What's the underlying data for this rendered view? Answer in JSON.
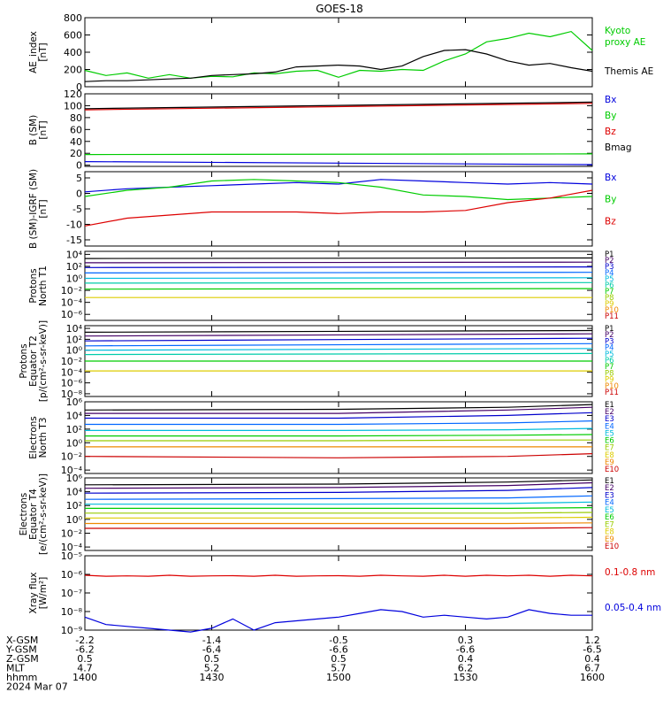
{
  "title": "GOES-18",
  "colors": {
    "black": "#000000",
    "green": "#00cc00",
    "blue": "#0000dd",
    "red": "#dd0000",
    "P1": "#000000",
    "P2": "#440066",
    "P3": "#0000cc",
    "P4": "#0066ff",
    "P5": "#00bbdd",
    "P6": "#00ccaa",
    "P7": "#00cc00",
    "P8": "#99cc00",
    "P9": "#ddcc00",
    "P10": "#ee8800",
    "P11": "#cc0000"
  },
  "footer": {
    "row_labels": [
      "X-GSM",
      "Y-GSM",
      "Z-GSM",
      "MLT",
      "hhmm",
      "2024 Mar 07"
    ],
    "columns": [
      [
        "-2.2",
        "-6.2",
        "0.5",
        "4.7",
        "1400"
      ],
      [
        "-1.4",
        "-6.4",
        "0.5",
        "5.2",
        "1430"
      ],
      [
        "-0.5",
        "-6.6",
        "0.5",
        "5.7",
        "1500"
      ],
      [
        "0.3",
        "-6.6",
        "0.4",
        "6.2",
        "1530"
      ],
      [
        "1.2",
        "-6.5",
        "0.4",
        "6.7",
        "1600"
      ]
    ]
  },
  "chart_data": [
    {
      "type": "line",
      "ylabel": [
        "AE_index",
        "[nT]"
      ],
      "yticks": [
        "800",
        "600",
        "400",
        "200",
        "0"
      ],
      "ylim": [
        0,
        800
      ],
      "legend": [
        {
          "text": "Kyoto",
          "color": "#00cc00"
        },
        {
          "text": "proxy AE",
          "color": "#00cc00"
        },
        {
          "text": "Themis AE",
          "color": "#000000"
        }
      ],
      "x": [
        1400,
        1405,
        1410,
        1415,
        1420,
        1425,
        1430,
        1435,
        1440,
        1445,
        1450,
        1455,
        1500,
        1505,
        1510,
        1515,
        1520,
        1525,
        1530,
        1535,
        1540,
        1545,
        1550,
        1555,
        1600
      ],
      "series": [
        {
          "name": "Kyoto proxy AE",
          "color": "#00cc00",
          "values": [
            190,
            130,
            160,
            100,
            140,
            100,
            120,
            115,
            160,
            150,
            180,
            190,
            110,
            190,
            180,
            200,
            190,
            300,
            380,
            520,
            560,
            620,
            580,
            640,
            420
          ]
        },
        {
          "name": "Themis AE",
          "color": "#000000",
          "values": [
            60,
            70,
            70,
            80,
            90,
            100,
            130,
            140,
            150,
            170,
            230,
            240,
            250,
            240,
            200,
            240,
            350,
            420,
            430,
            380,
            300,
            250,
            270,
            220,
            180
          ]
        }
      ]
    },
    {
      "type": "line",
      "ylabel": [
        "B (SM)",
        "[nT]"
      ],
      "yticks": [
        "120",
        "100",
        "80",
        "60",
        "40",
        "20",
        "0"
      ],
      "ylim": [
        -2,
        120
      ],
      "legend": [
        {
          "text": "Bx",
          "color": "#0000dd"
        },
        {
          "text": "By",
          "color": "#00cc00"
        },
        {
          "text": "Bz",
          "color": "#dd0000"
        },
        {
          "text": "Bmag",
          "color": "#000000"
        }
      ],
      "x": [
        1400,
        1600
      ],
      "series": [
        {
          "name": "Bx",
          "color": "#0000dd",
          "values": [
            6,
            1
          ]
        },
        {
          "name": "By",
          "color": "#00cc00",
          "values": [
            18,
            19
          ]
        },
        {
          "name": "Bz",
          "color": "#dd0000",
          "values": [
            93,
            104
          ]
        },
        {
          "name": "Bmag",
          "color": "#000000",
          "values": [
            95,
            106
          ]
        }
      ]
    },
    {
      "type": "line",
      "ylabel": [
        "B (SM)-IGRF (SM)",
        "[nT]"
      ],
      "yticks": [
        "5",
        "0",
        "-5",
        "-10",
        "-15"
      ],
      "ylim": [
        -17,
        7
      ],
      "legend": [
        {
          "text": "Bx",
          "color": "#0000dd"
        },
        {
          "text": "By",
          "color": "#00cc00"
        },
        {
          "text": "Bz",
          "color": "#dd0000"
        }
      ],
      "x": [
        1400,
        1410,
        1420,
        1430,
        1440,
        1450,
        1500,
        1510,
        1520,
        1530,
        1540,
        1550,
        1600
      ],
      "series": [
        {
          "name": "Bx",
          "color": "#0000dd",
          "values": [
            0.5,
            1.5,
            2,
            2.5,
            3,
            3.5,
            3,
            4.5,
            4,
            3.5,
            3,
            3.5,
            3
          ]
        },
        {
          "name": "By",
          "color": "#00cc00",
          "values": [
            -1,
            1,
            2,
            4,
            4.5,
            4,
            3.5,
            2,
            -0.5,
            -1,
            -2,
            -1.5,
            -1
          ]
        },
        {
          "name": "Bz",
          "color": "#dd0000",
          "values": [
            -10.5,
            -8,
            -7,
            -6,
            -6,
            -6,
            -6.5,
            -6,
            -6,
            -5.5,
            -3,
            -1.5,
            1
          ]
        }
      ]
    },
    {
      "type": "line",
      "ylabel": [
        "Protons",
        "North T1"
      ],
      "yticks": [
        "10⁴",
        "10²",
        "10⁰",
        "10⁻²",
        "10⁻⁴",
        "10⁻⁶"
      ],
      "log": true,
      "ylim": [
        -7,
        4.5
      ],
      "legend": [
        {
          "text": "P1",
          "color": "#000000"
        },
        {
          "text": "P2",
          "color": "#440066"
        },
        {
          "text": "P3",
          "color": "#0000cc"
        },
        {
          "text": "P4",
          "color": "#0066ff"
        },
        {
          "text": "P5",
          "color": "#00bbdd"
        },
        {
          "text": "P6",
          "color": "#00ccaa"
        },
        {
          "text": "P7",
          "color": "#00cc00"
        },
        {
          "text": "P8",
          "color": "#99cc00"
        },
        {
          "text": "P9",
          "color": "#ddcc00"
        },
        {
          "text": "P10",
          "color": "#ee8800"
        },
        {
          "text": "P11",
          "color": "#cc0000"
        }
      ],
      "x": [
        1400,
        1600
      ],
      "series": [
        {
          "name": "P1",
          "color": "#000000",
          "values": [
            3.3,
            3.4
          ]
        },
        {
          "name": "P2",
          "color": "#440066",
          "values": [
            2.6,
            2.7
          ]
        },
        {
          "name": "P3",
          "color": "#0000cc",
          "values": [
            1.8,
            1.9
          ]
        },
        {
          "name": "P4",
          "color": "#0066ff",
          "values": [
            0.9,
            1.0
          ]
        },
        {
          "name": "P5",
          "color": "#00bbdd",
          "values": [
            0,
            0.1
          ]
        },
        {
          "name": "P6",
          "color": "#00ccaa",
          "values": [
            -0.8,
            -0.7
          ]
        },
        {
          "name": "P7",
          "color": "#00cc00",
          "values": [
            -1.8,
            -1.7
          ]
        },
        {
          "name": "P9",
          "color": "#ddcc00",
          "values": [
            -3.2,
            -3.2
          ]
        }
      ]
    },
    {
      "type": "line",
      "ylabel": [
        "Protons",
        "Equator T2",
        "[p/(cm²-s-sr-keV)]"
      ],
      "yticks": [
        "10⁴",
        "10²",
        "10⁰",
        "10⁻²",
        "10⁻⁴",
        "10⁻⁶",
        "10⁻⁸"
      ],
      "log": true,
      "ylim": [
        -8.5,
        4.5
      ],
      "legend": [
        {
          "text": "P1",
          "color": "#000000"
        },
        {
          "text": "P2",
          "color": "#440066"
        },
        {
          "text": "P3",
          "color": "#0000cc"
        },
        {
          "text": "P4",
          "color": "#0066ff"
        },
        {
          "text": "P5",
          "color": "#00bbdd"
        },
        {
          "text": "P6",
          "color": "#00ccaa"
        },
        {
          "text": "P7",
          "color": "#00cc00"
        },
        {
          "text": "P8",
          "color": "#99cc00"
        },
        {
          "text": "P9",
          "color": "#ddcc00"
        },
        {
          "text": "P10",
          "color": "#ee8800"
        },
        {
          "text": "P11",
          "color": "#cc0000"
        }
      ],
      "x": [
        1400,
        1600
      ],
      "series": [
        {
          "name": "P1",
          "color": "#000000",
          "values": [
            3.3,
            3.6
          ]
        },
        {
          "name": "P2",
          "color": "#440066",
          "values": [
            2.6,
            3.0
          ]
        },
        {
          "name": "P3",
          "color": "#0000cc",
          "values": [
            1.7,
            2.2
          ]
        },
        {
          "name": "P4",
          "color": "#0066ff",
          "values": [
            0.8,
            1.2
          ]
        },
        {
          "name": "P5",
          "color": "#00bbdd",
          "values": [
            0,
            0.3
          ]
        },
        {
          "name": "P6",
          "color": "#00ccaa",
          "values": [
            -0.8,
            -0.6
          ]
        },
        {
          "name": "P7",
          "color": "#00cc00",
          "values": [
            -2.0,
            -2.0
          ]
        },
        {
          "name": "P9",
          "color": "#ddcc00",
          "values": [
            -3.8,
            -3.8
          ]
        }
      ]
    },
    {
      "type": "line",
      "ylabel": [
        "Electrons",
        "North T3"
      ],
      "yticks": [
        "10⁶",
        "10⁴",
        "10²",
        "10⁰",
        "10⁻²",
        "10⁻⁴"
      ],
      "log": true,
      "ylim": [
        -4.5,
        6
      ],
      "legend": [
        {
          "text": "E1",
          "color": "#000000"
        },
        {
          "text": "E2",
          "color": "#440066"
        },
        {
          "text": "E3",
          "color": "#0000cc"
        },
        {
          "text": "E4",
          "color": "#0066ff"
        },
        {
          "text": "E5",
          "color": "#00bbdd"
        },
        {
          "text": "E6",
          "color": "#00cc00"
        },
        {
          "text": "E7",
          "color": "#99cc00"
        },
        {
          "text": "E8",
          "color": "#ddcc00"
        },
        {
          "text": "E9",
          "color": "#ee8800"
        },
        {
          "text": "E10",
          "color": "#cc0000"
        }
      ],
      "x": [
        1400,
        1500,
        1540,
        1600
      ],
      "series": [
        {
          "name": "E1",
          "color": "#000000",
          "values": [
            4.8,
            4.9,
            5.2,
            5.6
          ]
        },
        {
          "name": "E2",
          "color": "#440066",
          "values": [
            4.3,
            4.3,
            4.8,
            5.2
          ]
        },
        {
          "name": "E3",
          "color": "#0000cc",
          "values": [
            3.6,
            3.6,
            4.0,
            4.4
          ]
        },
        {
          "name": "E4",
          "color": "#0066ff",
          "values": [
            2.7,
            2.7,
            2.9,
            3.2
          ]
        },
        {
          "name": "E5",
          "color": "#00bbdd",
          "values": [
            1.8,
            1.8,
            1.9,
            2.1
          ]
        },
        {
          "name": "E6",
          "color": "#00cc00",
          "values": [
            1.0,
            1.0,
            1.1,
            1.2
          ]
        },
        {
          "name": "E7",
          "color": "#99cc00",
          "values": [
            0.3,
            0.3,
            0.4,
            0.4
          ]
        },
        {
          "name": "E8",
          "color": "#ee8800",
          "values": [
            -0.6,
            -0.6,
            -0.6,
            -0.6
          ]
        },
        {
          "name": "E10",
          "color": "#cc0000",
          "values": [
            -2.0,
            -2.2,
            -2.0,
            -1.6
          ]
        }
      ]
    },
    {
      "type": "line",
      "ylabel": [
        "Electrons",
        "Equator T4",
        "[e/(cm²-s-sr-keV)]"
      ],
      "yticks": [
        "10⁶",
        "10⁴",
        "10²",
        "10⁰",
        "10⁻²",
        "10⁻⁴"
      ],
      "log": true,
      "ylim": [
        -4.5,
        6
      ],
      "legend": [
        {
          "text": "E1",
          "color": "#000000"
        },
        {
          "text": "E2",
          "color": "#440066"
        },
        {
          "text": "E3",
          "color": "#0000cc"
        },
        {
          "text": "E4",
          "color": "#0066ff"
        },
        {
          "text": "E5",
          "color": "#00bbdd"
        },
        {
          "text": "E6",
          "color": "#00cc00"
        },
        {
          "text": "E7",
          "color": "#99cc00"
        },
        {
          "text": "E8",
          "color": "#ddcc00"
        },
        {
          "text": "E9",
          "color": "#ee8800"
        },
        {
          "text": "E10",
          "color": "#cc0000"
        }
      ],
      "x": [
        1400,
        1500,
        1540,
        1600
      ],
      "series": [
        {
          "name": "E1",
          "color": "#000000",
          "values": [
            5.0,
            5.1,
            5.4,
            5.7
          ]
        },
        {
          "name": "E2",
          "color": "#440066",
          "values": [
            4.5,
            4.6,
            4.9,
            5.3
          ]
        },
        {
          "name": "E3",
          "color": "#0000cc",
          "values": [
            3.8,
            3.9,
            4.2,
            4.6
          ]
        },
        {
          "name": "E4",
          "color": "#0066ff",
          "values": [
            2.9,
            3.0,
            3.1,
            3.4
          ]
        },
        {
          "name": "E5",
          "color": "#00bbdd",
          "values": [
            2.2,
            2.2,
            2.3,
            2.5
          ]
        },
        {
          "name": "E6",
          "color": "#00cc00",
          "values": [
            1.6,
            1.6,
            1.6,
            1.7
          ]
        },
        {
          "name": "E7",
          "color": "#99cc00",
          "values": [
            0.9,
            0.9,
            0.9,
            1.0
          ]
        },
        {
          "name": "E8",
          "color": "#ddcc00",
          "values": [
            0.2,
            0.2,
            0.2,
            0.3
          ]
        },
        {
          "name": "E9",
          "color": "#ee8800",
          "values": [
            -0.6,
            -0.6,
            -0.6,
            -0.5
          ]
        },
        {
          "name": "E10",
          "color": "#cc0000",
          "values": [
            -1.3,
            -1.3,
            -1.3,
            -1.2
          ]
        }
      ]
    },
    {
      "type": "line",
      "ylabel": [
        "Xray flux",
        "[W/m²]"
      ],
      "yticks": [
        "10⁻⁵",
        "10⁻⁶",
        "10⁻⁷",
        "10⁻⁸",
        "10⁻⁹"
      ],
      "log": true,
      "ylim": [
        -9,
        -5
      ],
      "legend": [
        {
          "text": "0.1-0.8 nm",
          "color": "#dd0000"
        },
        {
          "text": "0.05-0.4 nm",
          "color": "#0000dd"
        }
      ],
      "x": [
        1400,
        1405,
        1410,
        1415,
        1420,
        1425,
        1430,
        1435,
        1440,
        1445,
        1450,
        1455,
        1500,
        1505,
        1510,
        1515,
        1520,
        1525,
        1530,
        1535,
        1540,
        1545,
        1550,
        1555,
        1600
      ],
      "series": [
        {
          "name": "0.1-0.8 nm",
          "color": "#dd0000",
          "values": [
            -6.05,
            -6.1,
            -6.08,
            -6.1,
            -6.05,
            -6.1,
            -6.08,
            -6.07,
            -6.1,
            -6.05,
            -6.1,
            -6.08,
            -6.07,
            -6.1,
            -6.05,
            -6.08,
            -6.1,
            -6.05,
            -6.1,
            -6.05,
            -6.08,
            -6.05,
            -6.1,
            -6.05,
            -6.08
          ]
        },
        {
          "name": "0.05-0.4 nm",
          "color": "#0000dd",
          "values": [
            -8.3,
            -8.7,
            -8.8,
            -8.9,
            -9.0,
            -9.1,
            -8.9,
            -8.4,
            -9.0,
            -8.6,
            -8.5,
            -8.4,
            -8.3,
            -8.1,
            -7.9,
            -8.0,
            -8.3,
            -8.2,
            -8.3,
            -8.4,
            -8.3,
            -7.9,
            -8.1,
            -8.2,
            -8.2
          ]
        }
      ]
    }
  ]
}
